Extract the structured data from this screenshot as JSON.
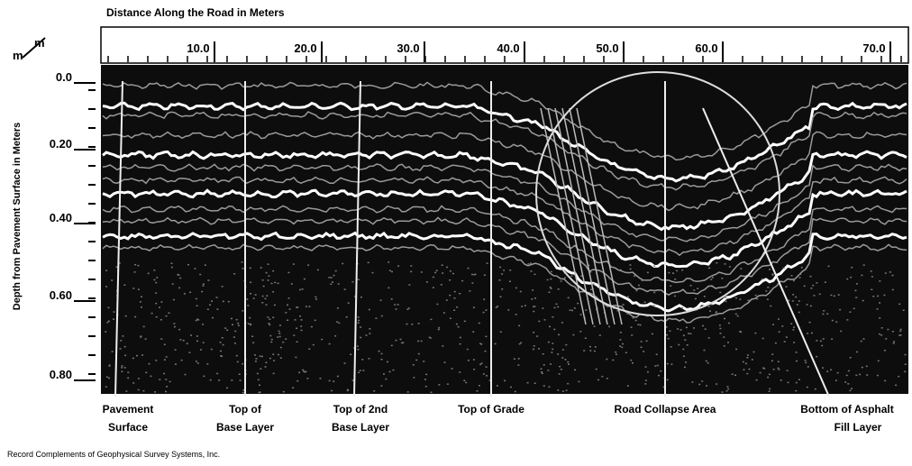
{
  "header": {
    "title": "Distance Along the Road in Meters",
    "corner_top": "m",
    "corner_bottom": "m"
  },
  "x_axis": {
    "labels": [
      "10.0",
      "20.0",
      "30.0",
      "40.0",
      "50.0",
      "60.0",
      "70.0"
    ]
  },
  "y_axis": {
    "title": "Depth from Pavement Surface in Meters",
    "labels": [
      "0.0",
      "0.20",
      "0.40",
      "0.60",
      "0.80"
    ]
  },
  "annotations": [
    {
      "line1": "Pavement",
      "line2": "Surface"
    },
    {
      "line1": "Top of",
      "line2": "Base Layer"
    },
    {
      "line1": "Top of 2nd",
      "line2": "Base Layer"
    },
    {
      "line1": "Top of Grade"
    },
    {
      "line1": "Road Collapse Area"
    },
    {
      "line1": "Bottom of Asphalt",
      "line2": "Fill Layer"
    }
  ],
  "footer": {
    "credit": "Record Complements of Geophysical Survey Systems, Inc."
  }
}
